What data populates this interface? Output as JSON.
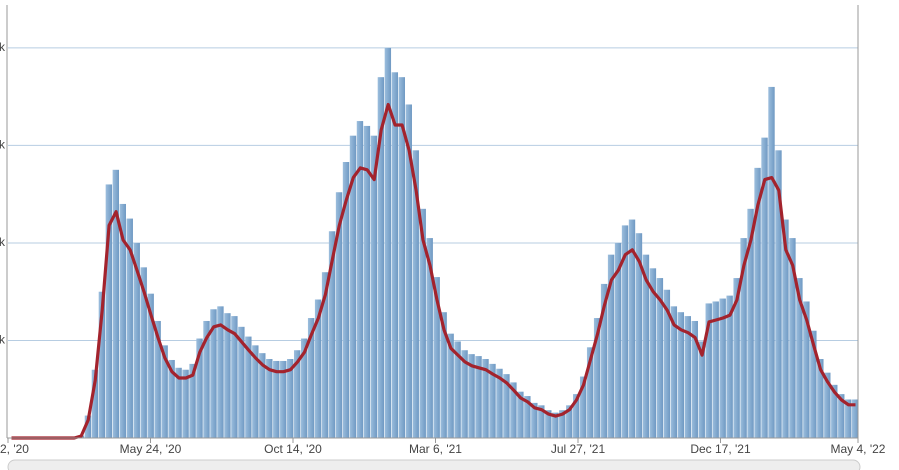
{
  "chart_data": {
    "type": "bar_line",
    "x": [
      "2020-01-02",
      "2020-01-09",
      "2020-01-16",
      "2020-01-23",
      "2020-01-30",
      "2020-02-06",
      "2020-02-13",
      "2020-02-20",
      "2020-02-27",
      "2020-03-05",
      "2020-03-12",
      "2020-03-19",
      "2020-03-26",
      "2020-04-02",
      "2020-04-09",
      "2020-04-16",
      "2020-04-23",
      "2020-04-30",
      "2020-05-07",
      "2020-05-14",
      "2020-05-21",
      "2020-05-28",
      "2020-06-04",
      "2020-06-11",
      "2020-06-18",
      "2020-06-25",
      "2020-07-02",
      "2020-07-09",
      "2020-07-16",
      "2020-07-23",
      "2020-07-30",
      "2020-08-06",
      "2020-08-13",
      "2020-08-20",
      "2020-08-27",
      "2020-09-03",
      "2020-09-10",
      "2020-09-17",
      "2020-09-24",
      "2020-10-01",
      "2020-10-08",
      "2020-10-15",
      "2020-10-22",
      "2020-10-29",
      "2020-11-05",
      "2020-11-12",
      "2020-11-19",
      "2020-11-26",
      "2020-12-03",
      "2020-12-10",
      "2020-12-17",
      "2020-12-24",
      "2020-12-31",
      "2021-01-07",
      "2021-01-14",
      "2021-01-21",
      "2021-01-28",
      "2021-02-04",
      "2021-02-11",
      "2021-02-18",
      "2021-02-25",
      "2021-03-04",
      "2021-03-11",
      "2021-03-18",
      "2021-03-25",
      "2021-04-01",
      "2021-04-08",
      "2021-04-15",
      "2021-04-22",
      "2021-04-29",
      "2021-05-06",
      "2021-05-13",
      "2021-05-20",
      "2021-05-27",
      "2021-06-03",
      "2021-06-10",
      "2021-06-17",
      "2021-06-24",
      "2021-07-01",
      "2021-07-08",
      "2021-07-15",
      "2021-07-22",
      "2021-07-29",
      "2021-08-05",
      "2021-08-12",
      "2021-08-19",
      "2021-08-26",
      "2021-09-02",
      "2021-09-09",
      "2021-09-16",
      "2021-09-23",
      "2021-09-30",
      "2021-10-07",
      "2021-10-14",
      "2021-10-21",
      "2021-10-28",
      "2021-11-04",
      "2021-11-11",
      "2021-11-18",
      "2021-11-25",
      "2021-12-02",
      "2021-12-09",
      "2021-12-16",
      "2021-12-23",
      "2021-12-30",
      "2022-01-06",
      "2022-01-13",
      "2022-01-20",
      "2022-01-27",
      "2022-02-03",
      "2022-02-10",
      "2022-02-17",
      "2022-02-24",
      "2022-03-03",
      "2022-03-10",
      "2022-03-17",
      "2022-03-24",
      "2022-03-31",
      "2022-04-07",
      "2022-04-14",
      "2022-04-21",
      "2022-04-28"
    ],
    "series": [
      {
        "kind": "bar",
        "color": "#7ba6cd",
        "values": [
          0,
          0,
          0,
          0,
          0,
          0,
          0,
          0,
          0,
          0,
          25,
          230,
          700,
          1500,
          2600,
          2750,
          2400,
          2250,
          2000,
          1750,
          1480,
          1200,
          950,
          800,
          720,
          700,
          760,
          1020,
          1200,
          1320,
          1350,
          1280,
          1250,
          1140,
          1040,
          950,
          870,
          810,
          790,
          790,
          810,
          900,
          1020,
          1230,
          1420,
          1700,
          2120,
          2520,
          2830,
          3100,
          3250,
          3200,
          3100,
          3700,
          4000,
          3750,
          3700,
          3420,
          2950,
          2350,
          2050,
          1650,
          1290,
          1070,
          990,
          900,
          860,
          840,
          810,
          760,
          710,
          655,
          570,
          475,
          430,
          360,
          335,
          285,
          260,
          285,
          335,
          450,
          630,
          930,
          1230,
          1580,
          1880,
          2000,
          2180,
          2240,
          2100,
          1880,
          1740,
          1640,
          1520,
          1350,
          1290,
          1250,
          1200,
          990,
          1380,
          1400,
          1430,
          1460,
          1640,
          2050,
          2350,
          2770,
          3080,
          3600,
          2950,
          2240,
          2050,
          1640,
          1400,
          1100,
          810,
          670,
          545,
          450,
          395,
          395
        ]
      },
      {
        "kind": "line",
        "color": "#a3232d",
        "values": [
          0,
          0,
          0,
          0,
          0,
          0,
          0,
          0,
          0,
          0,
          20,
          185,
          590,
          1310,
          2180,
          2320,
          2030,
          1930,
          1720,
          1500,
          1260,
          1030,
          820,
          680,
          615,
          615,
          645,
          880,
          1030,
          1140,
          1160,
          1110,
          1070,
          985,
          900,
          820,
          750,
          700,
          680,
          680,
          700,
          780,
          880,
          1060,
          1230,
          1470,
          1830,
          2180,
          2440,
          2670,
          2770,
          2750,
          2650,
          3160,
          3420,
          3210,
          3210,
          2950,
          2540,
          2030,
          1770,
          1415,
          1110,
          920,
          850,
          780,
          740,
          720,
          700,
          655,
          615,
          565,
          490,
          410,
          370,
          310,
          290,
          245,
          225,
          245,
          290,
          390,
          545,
          800,
          1060,
          1360,
          1620,
          1720,
          1880,
          1930,
          1810,
          1620,
          1500,
          1415,
          1310,
          1160,
          1110,
          1080,
          1030,
          850,
          1190,
          1210,
          1230,
          1260,
          1415,
          1770,
          2030,
          2390,
          2650,
          2670,
          2540,
          1930,
          1770,
          1415,
          1210,
          950,
          700,
          575,
          470,
          390,
          340,
          340
        ]
      }
    ],
    "xlim": [
      "2020-01-02",
      "2022-05-04"
    ],
    "xticks": [
      {
        "value": "2020-01-02",
        "label": "2, '20"
      },
      {
        "value": "2020-05-24",
        "label": "May 24, '20"
      },
      {
        "value": "2020-10-14",
        "label": "Oct 14, '20"
      },
      {
        "value": "2021-03-06",
        "label": "Mar 6, '21"
      },
      {
        "value": "2021-07-27",
        "label": "Jul 27, '21"
      },
      {
        "value": "2021-12-17",
        "label": "Dec 17, '21"
      },
      {
        "value": "2022-05-04",
        "label": "May 4, '22"
      }
    ],
    "ylim": [
      0,
      4440
    ],
    "yticks": [
      {
        "value": 1000,
        "label": "k"
      },
      {
        "value": 2000,
        "label": "k"
      },
      {
        "value": 3000,
        "label": "k"
      },
      {
        "value": 4000,
        "label": "k"
      }
    ],
    "grid": true
  }
}
